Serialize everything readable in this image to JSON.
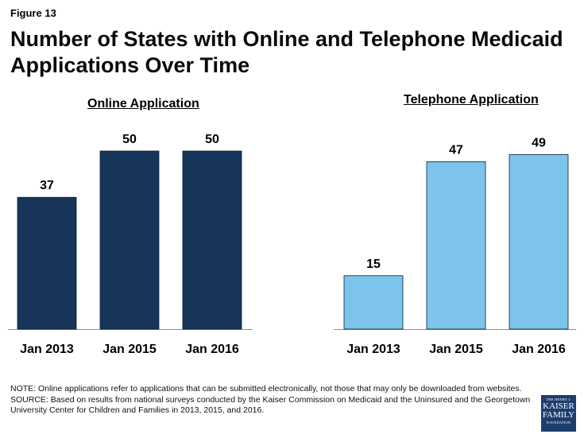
{
  "figure_label": "Figure 13",
  "title": "Number of States with Online and Telephone Medicaid Applications Over Time",
  "chart_data": [
    {
      "type": "bar",
      "title": "Online Application",
      "categories": [
        "Jan 2013",
        "Jan 2015",
        "Jan 2016"
      ],
      "values": [
        37,
        50,
        50
      ],
      "color": "#163559",
      "ylim": [
        0,
        50
      ]
    },
    {
      "type": "bar",
      "title": "Telephone Application",
      "categories": [
        "Jan 2013",
        "Jan 2015",
        "Jan 2016"
      ],
      "values": [
        15,
        47,
        49
      ],
      "color": "#7dc4ec",
      "ylim": [
        0,
        50
      ]
    }
  ],
  "note": "NOTE: Online applications  refer to applications that can be submitted electronically, not those that may only be downloaded from websites.",
  "source": "SOURCE: Based on results from national surveys conducted by the Kaiser Commission on Medicaid and the Uninsured and the Georgetown University Center for Children and Families in 2013, 2015, and 2016.",
  "logo": {
    "line1": "THE HENRY J.",
    "line2": "KAISER",
    "line3": "FAMILY",
    "line4": "FOUNDATION"
  }
}
